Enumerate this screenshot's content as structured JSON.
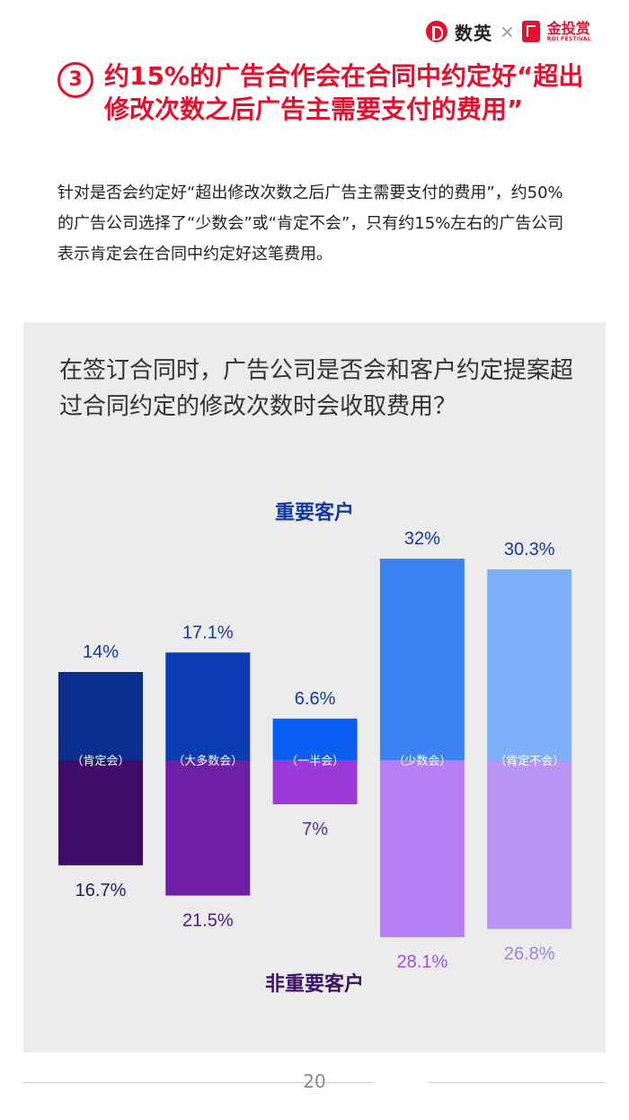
{
  "brand": {
    "name": "数英",
    "separator": "×",
    "partner_cn": "金投赏",
    "partner_en": "ROI FESTIVAL"
  },
  "headline": {
    "number": "3",
    "text": "约15%的广告合作会在合同中约定好“超出修改次数之后广告主需要支付的费用”"
  },
  "intro": "针对是否会约定好“超出修改次数之后广告主需要支付的费用”，约50%的广告公司选择了“少数会”或“肯定不会”，只有约15%左右的广告公司表示肯定会在合同中约定好这笔费用。",
  "chart_data": {
    "type": "bar",
    "title": "在签订合同时，广告公司是否会和客户约定提案超过合同约定的修改次数时会收取费用？",
    "categories": [
      "（肯定会）",
      "（大多数会）",
      "（一半会）",
      "（少数会）",
      "（肯定不会）"
    ],
    "series": [
      {
        "name": "重要客户",
        "direction": "up",
        "values": [
          14,
          17.1,
          6.6,
          32,
          30.3
        ],
        "labels": [
          "14%",
          "17.1%",
          "6.6%",
          "32%",
          "30.3%"
        ],
        "colors": [
          "#0b2e8f",
          "#0a3cb4",
          "#0b5ef2",
          "#3b82f2",
          "#7db0f6"
        ]
      },
      {
        "name": "非重要客户",
        "direction": "down",
        "values": [
          16.7,
          21.5,
          7,
          28.1,
          26.8
        ],
        "labels": [
          "16.7%",
          "21.5%",
          "7%",
          "28.1%",
          "26.8%"
        ],
        "colors": [
          "#3f0b68",
          "#6d1fa6",
          "#9b3ad8",
          "#b77ef5",
          "#b895f2"
        ]
      }
    ],
    "label_colors": {
      "up": "#1338a0",
      "down": [
        "#2a1a55",
        "#4a1a82",
        "#5d2a9a",
        "#9c4fe0",
        "#a07fe6"
      ]
    }
  },
  "footer": {
    "page": "20"
  }
}
